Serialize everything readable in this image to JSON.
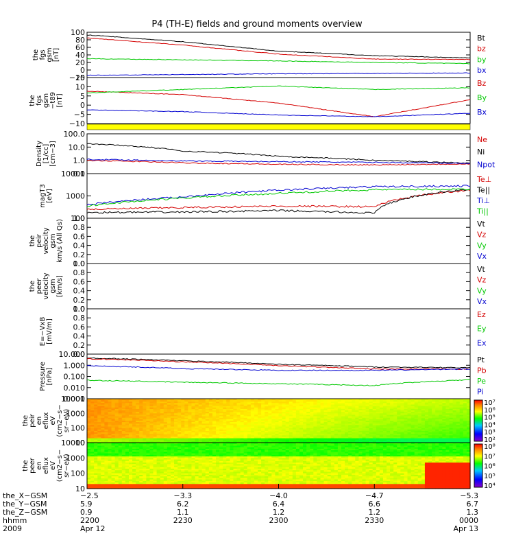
{
  "title": "P4 (TH-E) fields and ground moments overview",
  "panels": [
    {
      "id": "fgs_gsm",
      "ylabel": [
        "thе",
        "fgs",
        "gsm",
        "[nT]"
      ],
      "ticks": [
        "100",
        "80",
        "60",
        "40",
        "20",
        "0",
        "−20"
      ],
      "legend": [
        {
          "label": "Bt",
          "color": "#000000"
        },
        {
          "label": "bz",
          "color": "#d40000"
        },
        {
          "label": "by",
          "color": "#00c800"
        },
        {
          "label": "bx",
          "color": "#0000d0"
        }
      ]
    },
    {
      "id": "fgs_dsl",
      "ylabel": [
        "the",
        "fgs",
        "gsm",
        "−t89",
        "[nT]"
      ],
      "ticks": [
        "15",
        "10",
        "5",
        "0",
        "−5",
        "−10"
      ],
      "legend": [
        {
          "label": "Bz",
          "color": "#d40000"
        },
        {
          "label": "By",
          "color": "#00c800"
        },
        {
          "label": "Bx",
          "color": "#0000d0"
        }
      ]
    },
    {
      "id": "density",
      "ylabel": [
        "Density",
        "[1/cc]",
        "[cm−3]"
      ],
      "ticks": [
        "100.0",
        "10.0",
        "1.0",
        "0.1"
      ],
      "legend": [
        {
          "label": "Ne",
          "color": "#d40000"
        },
        {
          "label": "Ni",
          "color": "#000000"
        },
        {
          "label": "Npot",
          "color": "#0000d0"
        }
      ]
    },
    {
      "id": "temp",
      "ylabel": [
        "magT3",
        "[eV]"
      ],
      "ticks": [
        "10000",
        "1000",
        "100"
      ],
      "legend": [
        {
          "label": "Te⊥",
          "color": "#d40000"
        },
        {
          "label": "Te||",
          "color": "#000000"
        },
        {
          "label": "Ti⊥",
          "color": "#0000d0"
        },
        {
          "label": "Ti||",
          "color": "#00c800"
        }
      ]
    },
    {
      "id": "vel_ir",
      "ylabel": [
        "the",
        "peir",
        "velocity",
        "gsm",
        "km/s (All Qs)"
      ],
      "ticks": [
        "1.0",
        "0.8",
        "0.6",
        "0.4",
        "0.2",
        "0.0"
      ],
      "legend": [
        {
          "label": "Vt",
          "color": "#000000"
        },
        {
          "label": "Vz",
          "color": "#d40000"
        },
        {
          "label": "Vy",
          "color": "#00c800"
        },
        {
          "label": "Vx",
          "color": "#0000d0"
        }
      ]
    },
    {
      "id": "vel_er",
      "ylabel": [
        "the",
        "peer",
        "velocity",
        "gsm",
        "[km/s]"
      ],
      "ticks": [
        "1.0",
        "0.8",
        "0.6",
        "0.4",
        "0.2",
        "0.0"
      ],
      "legend": [
        {
          "label": "Vt",
          "color": "#000000"
        },
        {
          "label": "Vz",
          "color": "#d40000"
        },
        {
          "label": "Vy",
          "color": "#00c800"
        },
        {
          "label": "Vx",
          "color": "#0000d0"
        }
      ]
    },
    {
      "id": "efield",
      "ylabel": [
        "E=−VxB",
        "[mV/m]"
      ],
      "ticks": [
        "1.0",
        "0.8",
        "0.6",
        "0.4",
        "0.2",
        "0.0"
      ],
      "legend": [
        {
          "label": "Ez",
          "color": "#d40000"
        },
        {
          "label": "Ey",
          "color": "#00c800"
        },
        {
          "label": "Ex",
          "color": "#0000d0"
        }
      ]
    },
    {
      "id": "pressure",
      "ylabel": [
        "Pressure",
        "[nPa]"
      ],
      "ticks": [
        "10.000",
        "1.000",
        "0.100",
        "0.010",
        "0.001"
      ],
      "legend": [
        {
          "label": "Pt",
          "color": "#000000"
        },
        {
          "label": "Pb",
          "color": "#d40000"
        },
        {
          "label": "Pe",
          "color": "#00c800"
        },
        {
          "label": "Pi",
          "color": "#0000d0"
        }
      ]
    },
    {
      "id": "ion_spec",
      "ylabel": [
        "the",
        "peir",
        "en",
        "eflux",
        "eV",
        "(cm2−s−",
        "sr−eV)"
      ],
      "ticks": [
        "10000",
        "1000",
        "100",
        "10"
      ],
      "colorbar": [
        "10⁷",
        "10⁶",
        "10⁵",
        "10⁴",
        "10³",
        "10²"
      ]
    },
    {
      "id": "ele_spec",
      "ylabel": [
        "the",
        "peer",
        "en",
        "eflux",
        "eV",
        "(cm2−s−",
        "sr−eV)"
      ],
      "ticks": [
        "10000",
        "1000",
        "100",
        "10"
      ],
      "colorbar": [
        "10⁸",
        "10⁷",
        "10⁶",
        "10⁵",
        "10⁴"
      ]
    }
  ],
  "x_axis": {
    "rows": [
      {
        "label": "the_X−GSM",
        "values": [
          "−2.5",
          "−3.3",
          "−4.0",
          "−4.7",
          "−5.3"
        ]
      },
      {
        "label": "the_Y−GSM",
        "values": [
          "5.9",
          "6.2",
          "6.4",
          "6.6",
          "6.7"
        ]
      },
      {
        "label": "the_Z−GSM",
        "values": [
          "0.9",
          "1.1",
          "1.2",
          "1.2",
          "1.3"
        ]
      },
      {
        "label": "hhmm",
        "values": [
          "2200",
          "2230",
          "2300",
          "2330",
          "0000"
        ]
      },
      {
        "label": "2009",
        "values": [
          "Apr 12",
          "",
          "",
          "",
          "Apr 13"
        ]
      }
    ]
  },
  "chart_data": [
    {
      "type": "line",
      "id": "fgs_gsm",
      "x": [
        "2200",
        "2230",
        "2300",
        "2330",
        "0000"
      ],
      "ylim": [
        -20,
        100
      ],
      "series": [
        {
          "name": "Bt",
          "values": [
            93,
            75,
            50,
            38,
            32
          ]
        },
        {
          "name": "bz",
          "values": [
            85,
            66,
            42,
            29,
            28
          ]
        },
        {
          "name": "by",
          "values": [
            30,
            27,
            24,
            20,
            17
          ]
        },
        {
          "name": "bx",
          "values": [
            -14,
            -12,
            -10,
            -9,
            -8
          ]
        }
      ]
    },
    {
      "type": "line",
      "id": "fgs_dsl",
      "x": [
        "2200",
        "2230",
        "2300",
        "2330",
        "0000"
      ],
      "ylim": [
        -12,
        15
      ],
      "series": [
        {
          "name": "Bz",
          "values": [
            7,
            5,
            0,
            -8,
            2
          ]
        },
        {
          "name": "By",
          "values": [
            6,
            8,
            10,
            8,
            9
          ]
        },
        {
          "name": "Bx",
          "values": [
            -4,
            -5,
            -7,
            -8,
            -6
          ]
        }
      ]
    },
    {
      "type": "line",
      "id": "density",
      "x": [
        "2200",
        "2230",
        "2300",
        "2330",
        "0000"
      ],
      "ylim": [
        0.1,
        100
      ],
      "yscale": "log",
      "series": [
        {
          "name": "Ne",
          "values": [
            1.0,
            0.65,
            0.5,
            0.45,
            0.55
          ]
        },
        {
          "name": "Ni",
          "values": [
            18,
            5,
            2,
            1,
            0.6
          ]
        },
        {
          "name": "Npot",
          "values": [
            1.2,
            0.9,
            0.8,
            0.7,
            0.6
          ]
        }
      ]
    },
    {
      "type": "line",
      "id": "temp",
      "x": [
        "2200",
        "2230",
        "2300",
        "2330",
        "0000"
      ],
      "ylim": [
        100,
        10000
      ],
      "yscale": "log",
      "series": [
        {
          "name": "Te⊥",
          "values": [
            250,
            300,
            350,
            330,
            1800
          ]
        },
        {
          "name": "Te||",
          "values": [
            180,
            190,
            220,
            170,
            2000
          ]
        },
        {
          "name": "Ti⊥",
          "values": [
            400,
            900,
            1800,
            2600,
            2800
          ]
        },
        {
          "name": "Ti||",
          "values": [
            350,
            800,
            1300,
            1900,
            2000
          ]
        }
      ]
    },
    {
      "type": "line",
      "id": "pressure",
      "x": [
        "2200",
        "2230",
        "2300",
        "2330",
        "0000"
      ],
      "ylim": [
        0.001,
        10
      ],
      "yscale": "log",
      "series": [
        {
          "name": "Pt",
          "values": [
            4.5,
            2.5,
            1.2,
            0.7,
            0.6
          ]
        },
        {
          "name": "Pb",
          "values": [
            3.8,
            2.0,
            0.9,
            0.45,
            0.45
          ]
        },
        {
          "name": "Pe",
          "values": [
            0.045,
            0.03,
            0.022,
            0.015,
            0.05
          ]
        },
        {
          "name": "Pi",
          "values": [
            0.9,
            0.5,
            0.35,
            0.35,
            0.45
          ]
        }
      ]
    },
    {
      "type": "heatmap",
      "id": "ion_spec",
      "x": [
        "2200",
        "2230",
        "2300",
        "2330",
        "0000"
      ],
      "ylim": [
        5,
        30000
      ],
      "yscale": "log"
    },
    {
      "type": "heatmap",
      "id": "ele_spec",
      "x": [
        "2200",
        "2230",
        "2300",
        "2330",
        "0000"
      ],
      "ylim": [
        5,
        30000
      ],
      "yscale": "log"
    }
  ]
}
